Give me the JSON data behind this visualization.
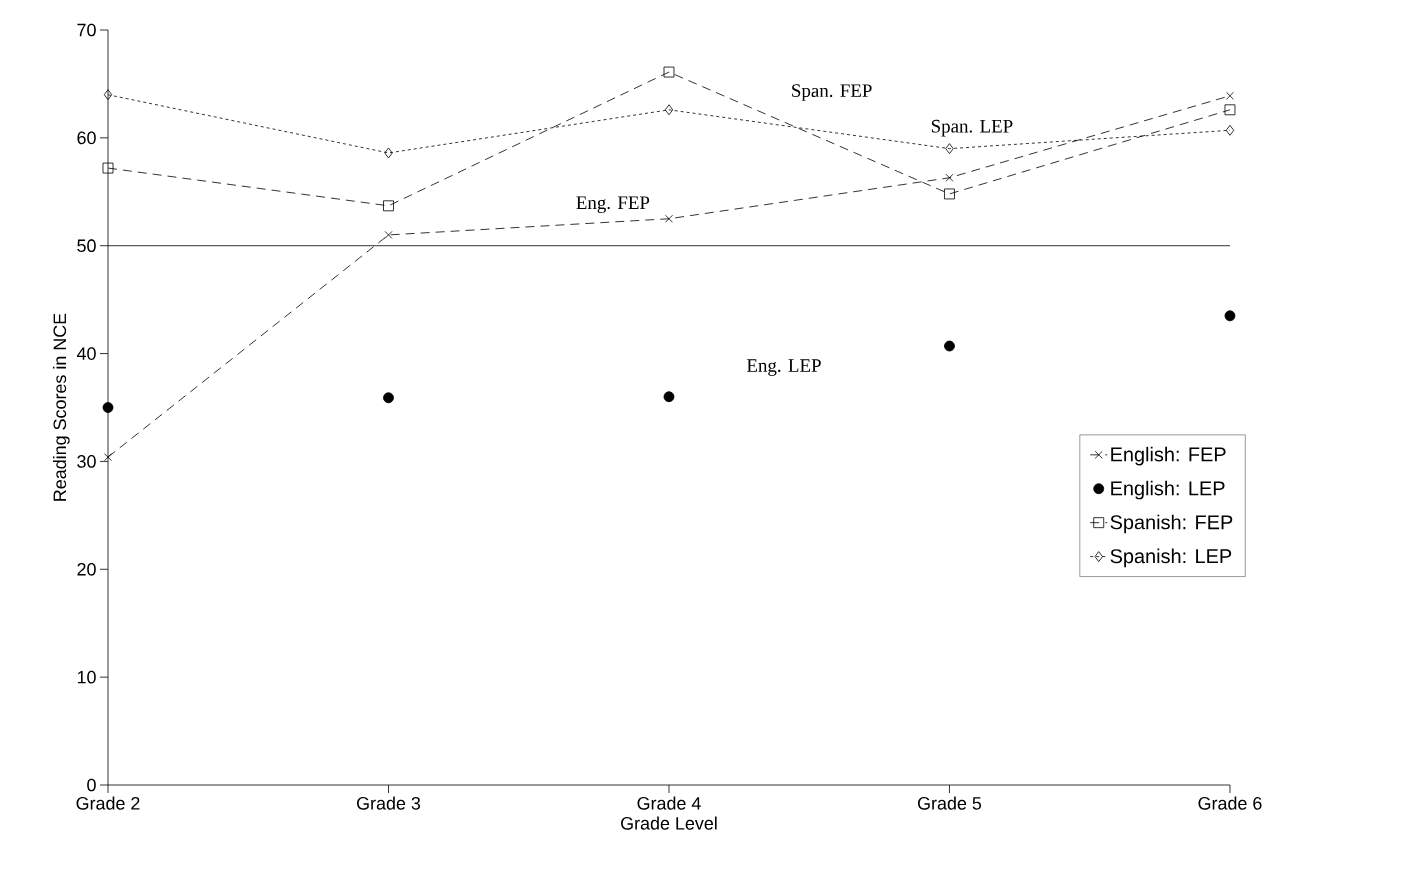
{
  "chart_data": {
    "type": "line",
    "xlabel": "Grade Level",
    "ylabel": "Reading Scores in NCE",
    "categories": [
      "Grade 2",
      "Grade 3",
      "Grade 4",
      "Grade 5",
      "Grade 6"
    ],
    "ylim": [
      0,
      70
    ],
    "yticks": [
      0,
      10,
      20,
      30,
      40,
      50,
      60,
      70
    ],
    "series": [
      {
        "name": "English: FEP",
        "color": "#000000",
        "marker": "cross",
        "line_style": "dashed",
        "values": [
          30.4,
          51.0,
          52.5,
          56.3,
          63.9
        ]
      },
      {
        "name": "English: LEP",
        "color": "#000000",
        "type": "scatter",
        "marker": "circle",
        "values": [
          35.0,
          35.9,
          36.0,
          40.7,
          43.5
        ]
      },
      {
        "name": "Spanish: FEP",
        "color": "#000000",
        "marker": "square",
        "line_style": "dashed",
        "values": [
          57.2,
          53.7,
          66.1,
          54.8,
          62.6
        ]
      },
      {
        "name": "Spanish: LEP",
        "color": "#000000",
        "marker": "diamond",
        "line_style": "dotted",
        "values": [
          64.0,
          58.6,
          62.6,
          59.0,
          60.7
        ]
      }
    ],
    "ref_lines": [
      {
        "axis": "y",
        "value": 50,
        "color": "#000000",
        "line_style": "solid"
      }
    ],
    "annotations": [
      "Span. FEP",
      "Span. LEP",
      "Eng. FEP",
      "Eng. LEP"
    ],
    "legend": "right",
    "grid": false
  }
}
